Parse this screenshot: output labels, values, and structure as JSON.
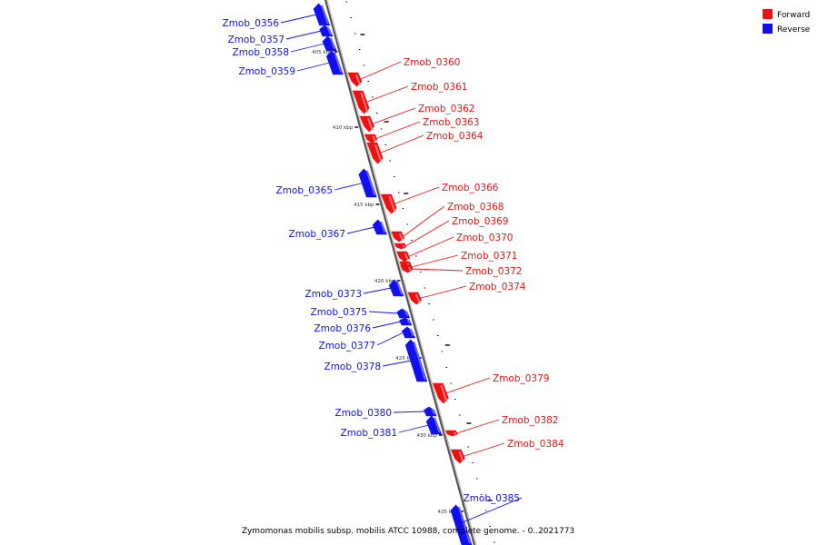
{
  "legend": {
    "forward": {
      "label": "Forward",
      "color": "#ee1111"
    },
    "reverse": {
      "label": "Reverse",
      "color": "#1010ee"
    }
  },
  "caption": "Zymomonas mobilis subsp. mobilis ATCC 10988, complete genome. - 0..2021773",
  "scale_labels": [
    "405 kbp",
    "410 kbp",
    "415 kbp",
    "420 kbp",
    "425 kbp",
    "430 kbp",
    "435 kbp"
  ],
  "genes": [
    {
      "id": "Zmob_0356",
      "strand": "reverse"
    },
    {
      "id": "Zmob_0357",
      "strand": "reverse"
    },
    {
      "id": "Zmob_0358",
      "strand": "reverse"
    },
    {
      "id": "Zmob_0359",
      "strand": "reverse"
    },
    {
      "id": "Zmob_0360",
      "strand": "forward"
    },
    {
      "id": "Zmob_0361",
      "strand": "forward"
    },
    {
      "id": "Zmob_0362",
      "strand": "forward"
    },
    {
      "id": "Zmob_0363",
      "strand": "forward"
    },
    {
      "id": "Zmob_0364",
      "strand": "forward"
    },
    {
      "id": "Zmob_0365",
      "strand": "reverse"
    },
    {
      "id": "Zmob_0366",
      "strand": "forward"
    },
    {
      "id": "Zmob_0367",
      "strand": "reverse"
    },
    {
      "id": "Zmob_0368",
      "strand": "forward"
    },
    {
      "id": "Zmob_0369",
      "strand": "forward"
    },
    {
      "id": "Zmob_0370",
      "strand": "forward"
    },
    {
      "id": "Zmob_0371",
      "strand": "forward"
    },
    {
      "id": "Zmob_0372",
      "strand": "forward"
    },
    {
      "id": "Zmob_0373",
      "strand": "reverse"
    },
    {
      "id": "Zmob_0374",
      "strand": "forward"
    },
    {
      "id": "Zmob_0375",
      "strand": "reverse"
    },
    {
      "id": "Zmob_0376",
      "strand": "reverse"
    },
    {
      "id": "Zmob_0377",
      "strand": "reverse"
    },
    {
      "id": "Zmob_0378",
      "strand": "reverse"
    },
    {
      "id": "Zmob_0379",
      "strand": "forward"
    },
    {
      "id": "Zmob_0380",
      "strand": "reverse"
    },
    {
      "id": "Zmob_0381",
      "strand": "reverse"
    },
    {
      "id": "Zmob_0382",
      "strand": "forward"
    },
    {
      "id": "Zmob_0384",
      "strand": "forward"
    },
    {
      "id": "Zmob_0385",
      "strand": "reverse"
    }
  ]
}
